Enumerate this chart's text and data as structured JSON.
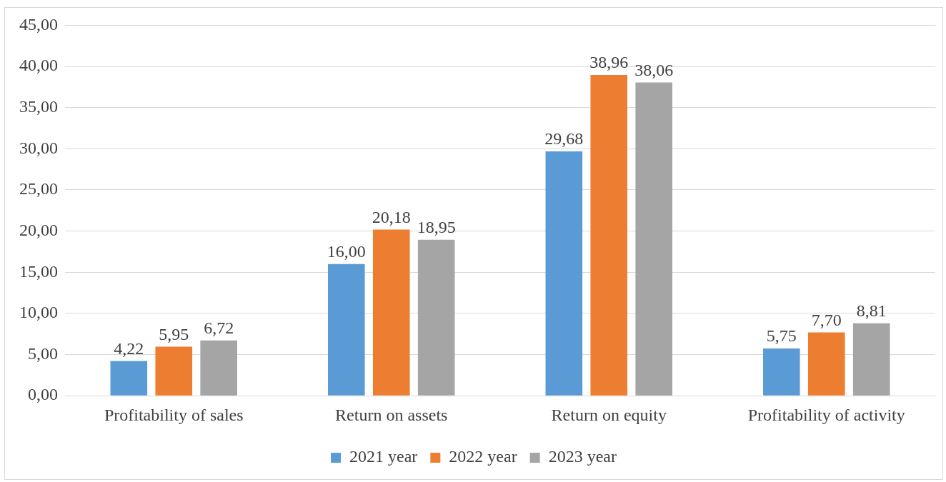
{
  "chart_data": {
    "type": "bar",
    "categories": [
      "Profitability of sales",
      "Return on assets",
      "Return on equity",
      "Profitability of activity"
    ],
    "series": [
      {
        "name": "2021 year",
        "color": "#5b9bd5",
        "values": [
          4.22,
          16.0,
          29.68,
          5.75
        ],
        "value_labels": [
          "4,22",
          "16,00",
          "29,68",
          "5,75"
        ]
      },
      {
        "name": "2022 year",
        "color": "#ed7d31",
        "values": [
          5.95,
          20.18,
          38.96,
          7.7
        ],
        "value_labels": [
          "5,95",
          "20,18",
          "38,96",
          "7,70"
        ]
      },
      {
        "name": "2023 year",
        "color": "#a5a5a5",
        "values": [
          6.72,
          18.95,
          38.06,
          8.81
        ],
        "value_labels": [
          "6,72",
          "18,95",
          "38,06",
          "8,81"
        ]
      }
    ],
    "ylim": [
      0,
      45
    ],
    "yticks": [
      {
        "value": 0,
        "label": "0,00"
      },
      {
        "value": 5,
        "label": "5,00"
      },
      {
        "value": 10,
        "label": "10,00"
      },
      {
        "value": 15,
        "label": "15,00"
      },
      {
        "value": 20,
        "label": "20,00"
      },
      {
        "value": 25,
        "label": "25,00"
      },
      {
        "value": 30,
        "label": "30,00"
      },
      {
        "value": 35,
        "label": "35,00"
      },
      {
        "value": 40,
        "label": "40,00"
      },
      {
        "value": 45,
        "label": "45,00"
      }
    ],
    "grid": "y",
    "legend": "bottom"
  }
}
